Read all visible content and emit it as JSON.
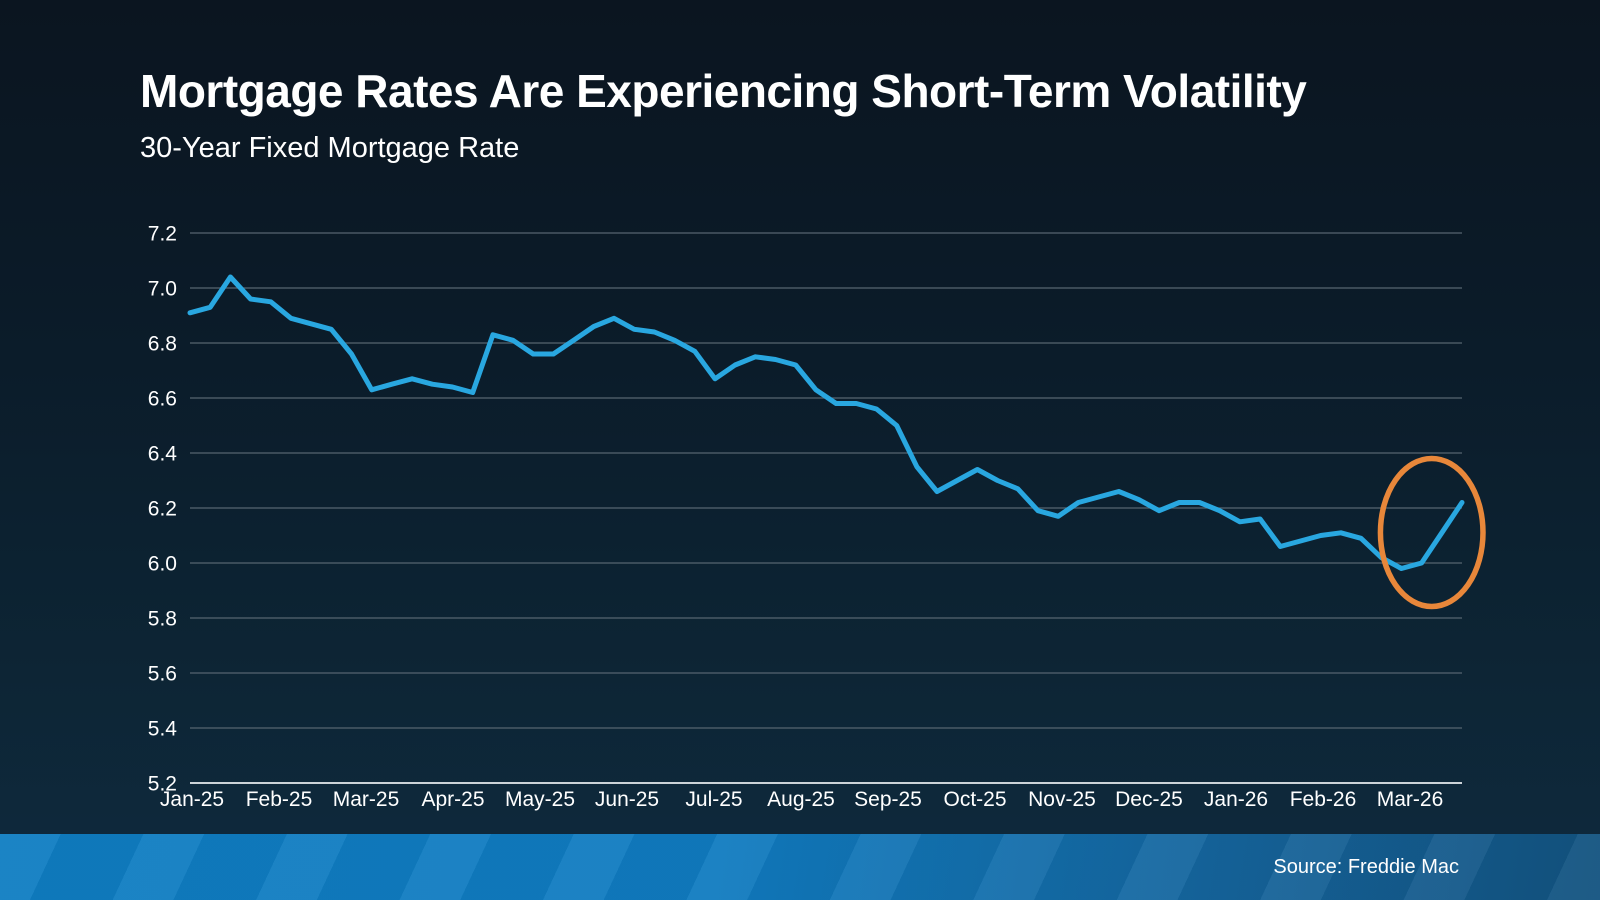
{
  "header": {
    "title": "Mortgage Rates Are Experiencing Short-Term Volatility",
    "subtitle": "30-Year Fixed Mortgage Rate"
  },
  "footer": {
    "source": "Source: Freddie Mac"
  },
  "colors": {
    "background_top": "#0b1520",
    "background_bottom": "#0e2a3e",
    "line": "#29a7e0",
    "gridline": "#566570",
    "axis_line": "#ccd3d8",
    "text": "#ffffff",
    "highlight_ellipse": "#e8873a",
    "footer_left": "#0f7dc2",
    "footer_right": "#12527f"
  },
  "chart_data": {
    "type": "line",
    "title": "Mortgage Rates Are Experiencing Short-Term Volatility",
    "subtitle": "30-Year Fixed Mortgage Rate",
    "xlabel": "",
    "ylabel": "",
    "ylim": [
      5.2,
      7.2
    ],
    "grid": "horizontal",
    "legend": "none",
    "frequency": "weekly",
    "y_tick_labels": [
      "7.2",
      "7.0",
      "6.8",
      "6.6",
      "6.4",
      "6.2",
      "6.0",
      "5.8",
      "5.6",
      "5.4",
      "5.2"
    ],
    "x_tick_labels": [
      "Jan-25",
      "Feb-25",
      "Mar-25",
      "Apr-25",
      "May-25",
      "Jun-25",
      "Jul-25",
      "Aug-25",
      "Sep-25",
      "Oct-25",
      "Nov-25",
      "Dec-25",
      "Jan-26",
      "Feb-26",
      "Mar-26"
    ],
    "points_per_month": [
      5,
      4,
      4,
      4,
      5,
      4,
      5,
      4,
      4,
      5,
      4,
      4,
      5,
      4,
      3
    ],
    "series": [
      {
        "name": "30-Year Fixed Mortgage Rate (%)",
        "color": "#29a7e0",
        "values": [
          6.91,
          6.93,
          7.04,
          6.96,
          6.95,
          6.89,
          6.87,
          6.85,
          6.76,
          6.63,
          6.65,
          6.67,
          6.65,
          6.64,
          6.62,
          6.83,
          6.81,
          6.76,
          6.76,
          6.81,
          6.86,
          6.89,
          6.85,
          6.84,
          6.81,
          6.77,
          6.67,
          6.72,
          6.75,
          6.74,
          6.72,
          6.63,
          6.58,
          6.58,
          6.56,
          6.5,
          6.35,
          6.26,
          6.3,
          6.34,
          6.3,
          6.27,
          6.19,
          6.17,
          6.22,
          6.24,
          6.26,
          6.23,
          6.19,
          6.22,
          6.22,
          6.19,
          6.15,
          6.16,
          6.06,
          6.08,
          6.1,
          6.11,
          6.09,
          6.02,
          5.98,
          6.0,
          6.11,
          6.22
        ]
      }
    ],
    "annotation": {
      "shape": "ellipse",
      "color": "#e8873a",
      "highlights": "last 4 weekly data points (short-term volatility: dip to 5.98 then rebound to 6.22)",
      "points_circled": 4
    }
  }
}
